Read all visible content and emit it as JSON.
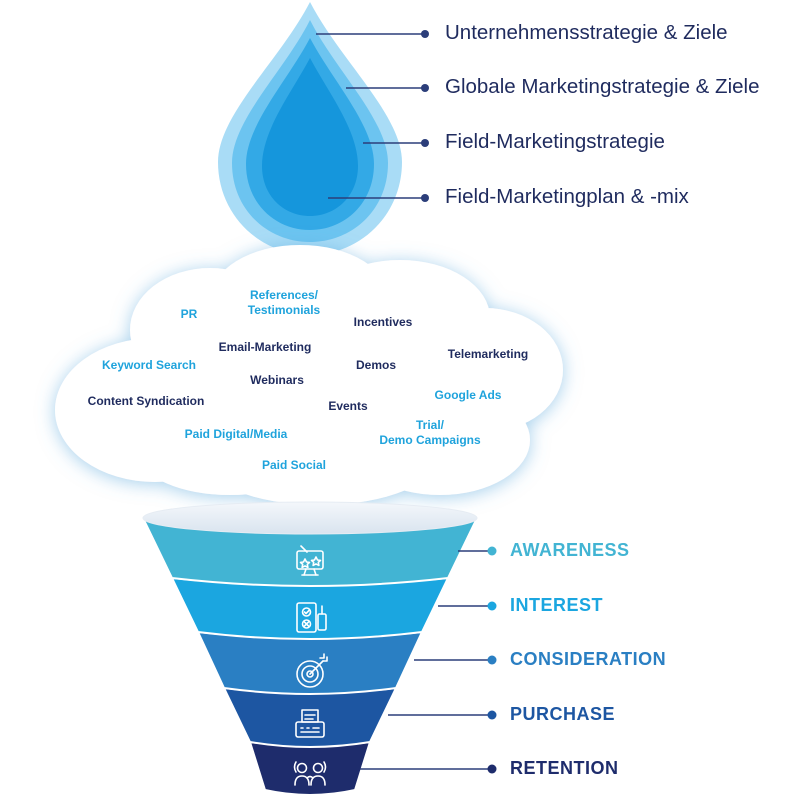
{
  "strategy_levels": [
    {
      "label": "Unternehmensstrategie & Ziele",
      "color": "#a9dcf6"
    },
    {
      "label": "Globale Marketingstrategie & Ziele",
      "color": "#6cc4f0"
    },
    {
      "label": "Field-Marketingstrategie",
      "color": "#33a9e6"
    },
    {
      "label": "Field-Marketingplan & -mix",
      "color": "#1596dc"
    }
  ],
  "marketing_mix": [
    {
      "label": "PR",
      "tone": "light"
    },
    {
      "label": "References/\nTestimonials",
      "tone": "light"
    },
    {
      "label": "Incentives",
      "tone": "dark"
    },
    {
      "label": "Email-Marketing",
      "tone": "dark"
    },
    {
      "label": "Telemarketing",
      "tone": "dark"
    },
    {
      "label": "Keyword Search",
      "tone": "light"
    },
    {
      "label": "Demos",
      "tone": "dark"
    },
    {
      "label": "Webinars",
      "tone": "dark"
    },
    {
      "label": "Google Ads",
      "tone": "light"
    },
    {
      "label": "Content Syndication",
      "tone": "dark"
    },
    {
      "label": "Events",
      "tone": "dark"
    },
    {
      "label": "Trial/\nDemo Campaigns",
      "tone": "light"
    },
    {
      "label": "Paid Digital/Media",
      "tone": "light"
    },
    {
      "label": "Paid Social",
      "tone": "light"
    }
  ],
  "funnel_stages": [
    {
      "label": "AWARENESS",
      "color": "#42b4d3",
      "icon": "monitor-stars-icon"
    },
    {
      "label": "INTEREST",
      "color": "#1ba6e0",
      "icon": "checklist-phone-icon"
    },
    {
      "label": "CONSIDERATION",
      "color": "#2a7fc3",
      "icon": "target-icon"
    },
    {
      "label": "PURCHASE",
      "color": "#1d56a2",
      "icon": "cash-register-icon"
    },
    {
      "label": "RETENTION",
      "color": "#1e2c6c",
      "icon": "people-icon"
    }
  ],
  "connector_color": "#2c3e7a"
}
